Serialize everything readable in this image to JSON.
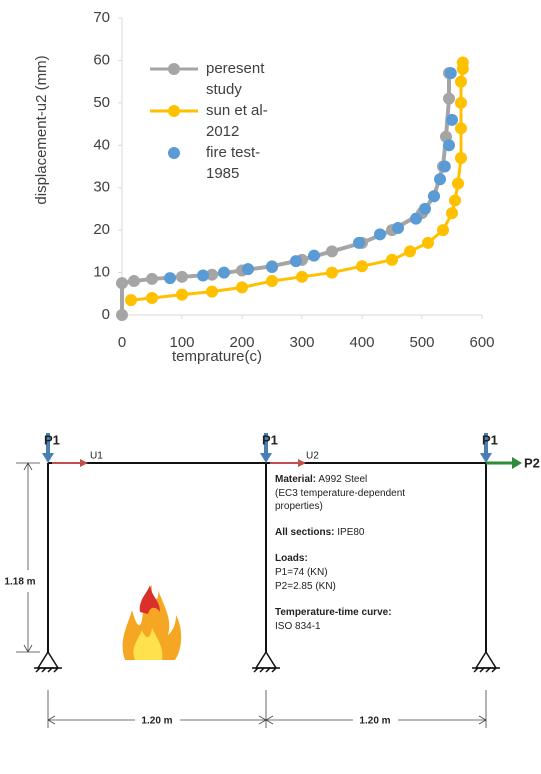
{
  "chart_data": {
    "type": "line",
    "x_label": "temprature(c)",
    "y_label": "displacement-u2 (mm)",
    "xlim": [
      0,
      600
    ],
    "xticks": [
      0,
      100,
      200,
      300,
      400,
      500,
      600
    ],
    "ylim": [
      0,
      70
    ],
    "yticks": [
      0,
      10,
      20,
      30,
      40,
      50,
      60,
      70
    ],
    "grid": false,
    "legend": "upper left",
    "series": [
      {
        "name": "peresent study",
        "color": "#a5a5a5",
        "mode": "lines+markers",
        "x": [
          0,
          0,
          20,
          50,
          100,
          150,
          200,
          250,
          300,
          350,
          400,
          450,
          500,
          520,
          535,
          540,
          545,
          545
        ],
        "values": [
          0,
          7.5,
          8,
          8.5,
          9,
          9.5,
          10.5,
          11.5,
          13,
          15,
          17,
          20,
          24,
          28,
          35,
          42,
          51,
          57
        ]
      },
      {
        "name": "sun et al-2012",
        "color": "#ffc000",
        "mode": "lines+markers",
        "x": [
          15,
          50,
          100,
          150,
          200,
          250,
          300,
          350,
          400,
          450,
          480,
          510,
          535,
          550,
          555,
          560,
          565,
          565,
          565,
          565,
          568,
          568
        ],
        "values": [
          3.5,
          4,
          4.8,
          5.5,
          6.5,
          8,
          9,
          10,
          11.5,
          13,
          15,
          17,
          20,
          24,
          27,
          31,
          37,
          44,
          50,
          55,
          58,
          59.5
        ]
      },
      {
        "name": "fire test-1985",
        "color": "#5b9bd5",
        "mode": "markers",
        "x": [
          80,
          135,
          170,
          210,
          250,
          290,
          320,
          395,
          430,
          460,
          490,
          505,
          520,
          530,
          538,
          545,
          550,
          548
        ],
        "values": [
          8.7,
          9.3,
          10,
          10.8,
          11.3,
          12.7,
          14,
          17,
          19,
          20.5,
          22.7,
          25,
          28,
          32,
          35,
          40,
          46,
          57
        ]
      }
    ]
  },
  "diagram": {
    "loads": [
      "P1",
      "P1",
      "P1",
      "P2"
    ],
    "displacements": [
      "U1",
      "U2"
    ],
    "height": "1.18 m",
    "spans": [
      "1.20 m",
      "1.20 m"
    ],
    "notes": [
      {
        "bold": "Material:",
        "text": " A992 Steel"
      },
      {
        "bold": "",
        "text": "(EC3 temperature-dependent"
      },
      {
        "bold": "",
        "text": "properties)"
      },
      {
        "bold": "All sections:",
        "text": " IPE80"
      },
      {
        "bold": "Loads:",
        "text": ""
      },
      {
        "bold": "",
        "text": "P1=74 (KN)"
      },
      {
        "bold": "",
        "text": "P2=2.85 (KN)"
      },
      {
        "bold": "Temperature-time curve:",
        "text": ""
      },
      {
        "bold": "",
        "text": "ISO 834-1"
      }
    ]
  }
}
